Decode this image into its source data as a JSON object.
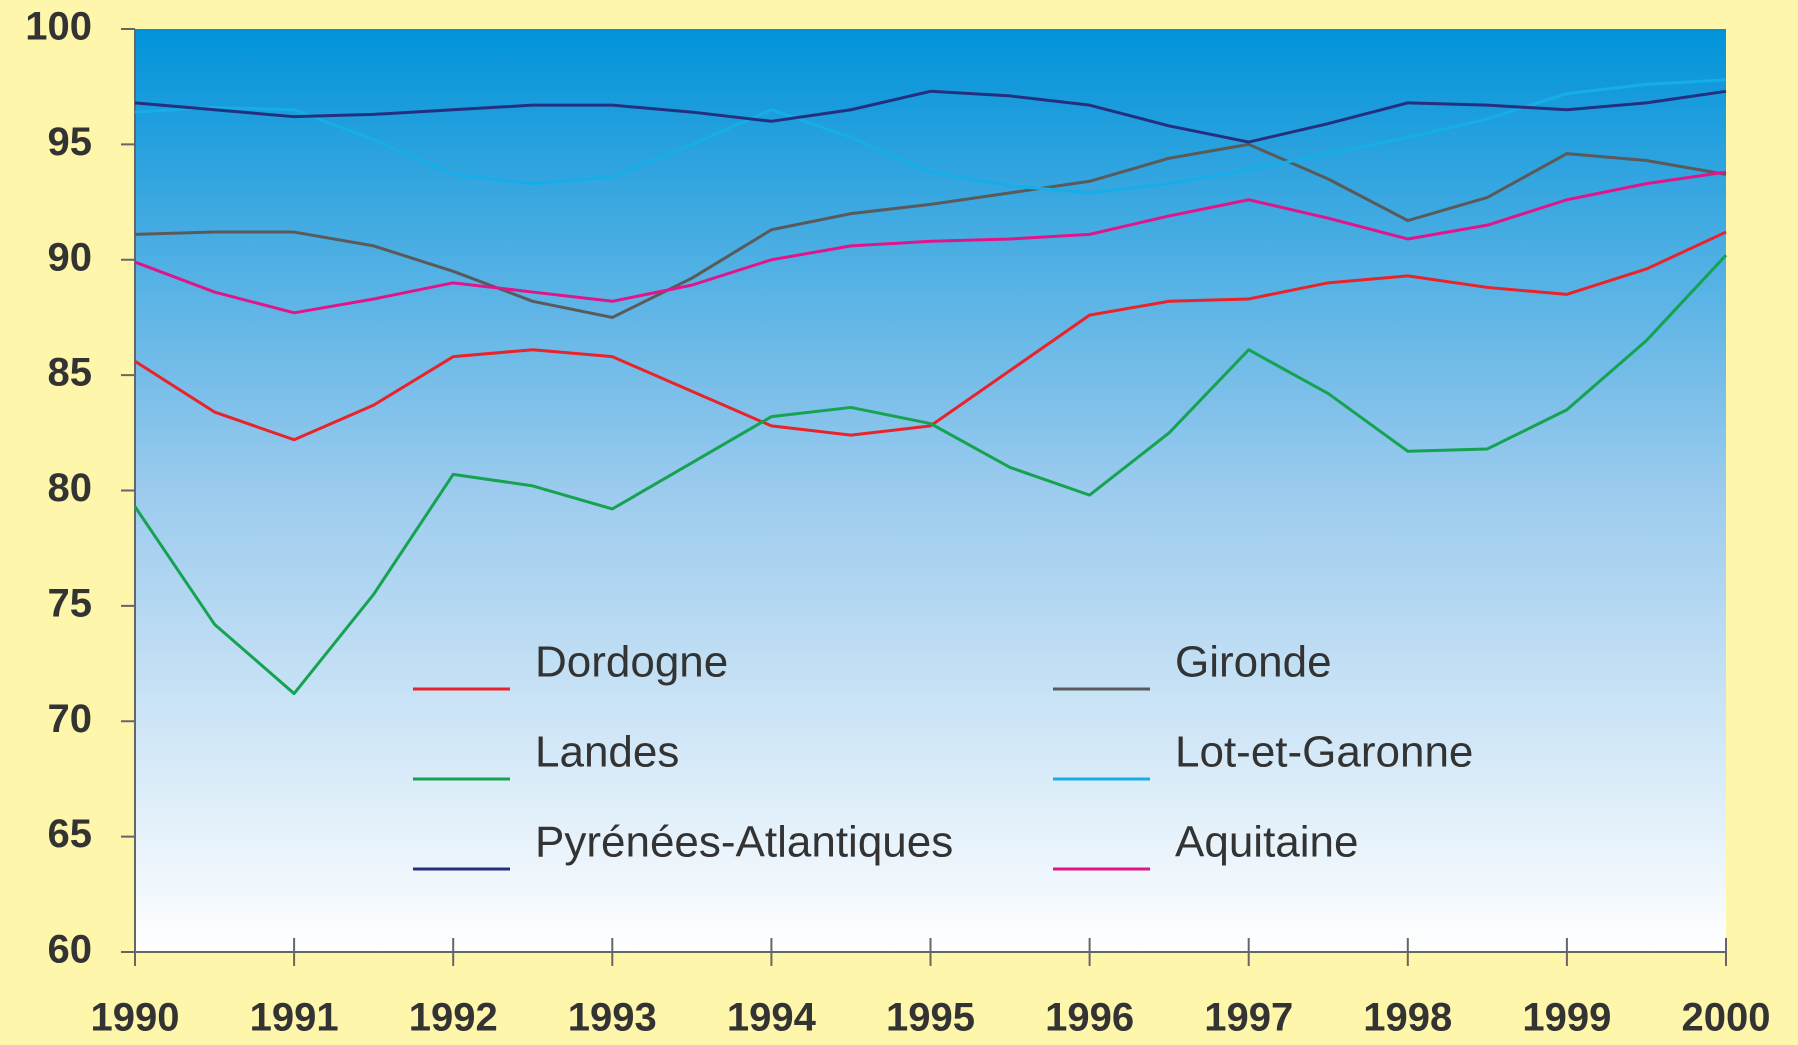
{
  "chart_data": {
    "type": "line",
    "x": [
      1990,
      1990.5,
      1991,
      1991.5,
      1992,
      1992.5,
      1993,
      1993.5,
      1994,
      1994.5,
      1995,
      1995.5,
      1996,
      1996.5,
      1997,
      1997.5,
      1998,
      1998.5,
      1999,
      1999.5,
      2000
    ],
    "xlim": [
      1990,
      2000
    ],
    "xticks": [
      1990,
      1991,
      1992,
      1993,
      1994,
      1995,
      1996,
      1997,
      1998,
      1999,
      2000
    ],
    "ylim": [
      60,
      100
    ],
    "yticks": [
      60,
      65,
      70,
      75,
      80,
      85,
      90,
      95,
      100
    ],
    "series": [
      {
        "name": "Dordogne",
        "color": "#e8232a",
        "values": [
          85.6,
          83.4,
          82.2,
          83.7,
          85.8,
          86.1,
          85.8,
          84.3,
          82.8,
          82.4,
          82.8,
          85.2,
          87.6,
          88.2,
          88.3,
          89.0,
          89.3,
          88.8,
          88.5,
          89.6,
          91.2
        ]
      },
      {
        "name": "Gironde",
        "color": "#5a5a5a",
        "values": [
          91.1,
          91.2,
          91.2,
          90.6,
          89.5,
          88.2,
          87.5,
          89.2,
          91.3,
          92.0,
          92.4,
          92.9,
          93.4,
          94.4,
          95.0,
          93.5,
          91.7,
          92.7,
          94.6,
          94.3,
          93.7
        ]
      },
      {
        "name": "Landes",
        "color": "#15a351",
        "values": [
          79.3,
          74.2,
          71.2,
          75.5,
          80.7,
          80.2,
          79.2,
          81.2,
          83.2,
          83.6,
          82.9,
          81.0,
          79.8,
          82.5,
          86.1,
          84.2,
          81.7,
          81.8,
          83.5,
          86.5,
          90.2
        ]
      },
      {
        "name": "Lot-et-Garonne",
        "color": "#16aee6",
        "values": [
          96.4,
          96.6,
          96.5,
          95.2,
          93.7,
          93.3,
          93.6,
          95.0,
          96.5,
          95.3,
          93.8,
          93.2,
          92.9,
          93.3,
          93.9,
          94.6,
          95.3,
          96.1,
          97.2,
          97.6,
          97.8
        ]
      },
      {
        "name": "Pyrénées-Atlantiques",
        "color": "#24307f",
        "values": [
          96.8,
          96.5,
          96.2,
          96.3,
          96.5,
          96.7,
          96.7,
          96.4,
          96.0,
          96.5,
          97.3,
          97.1,
          96.7,
          95.8,
          95.1,
          95.9,
          96.8,
          96.7,
          96.5,
          96.8,
          97.3
        ]
      },
      {
        "name": "Aquitaine",
        "color": "#e0158a",
        "values": [
          89.9,
          88.6,
          87.7,
          88.3,
          89.0,
          88.6,
          88.2,
          88.9,
          90.0,
          90.6,
          90.8,
          90.9,
          91.1,
          91.9,
          92.6,
          91.8,
          90.9,
          91.5,
          92.6,
          93.3,
          93.8
        ]
      }
    ]
  }
}
